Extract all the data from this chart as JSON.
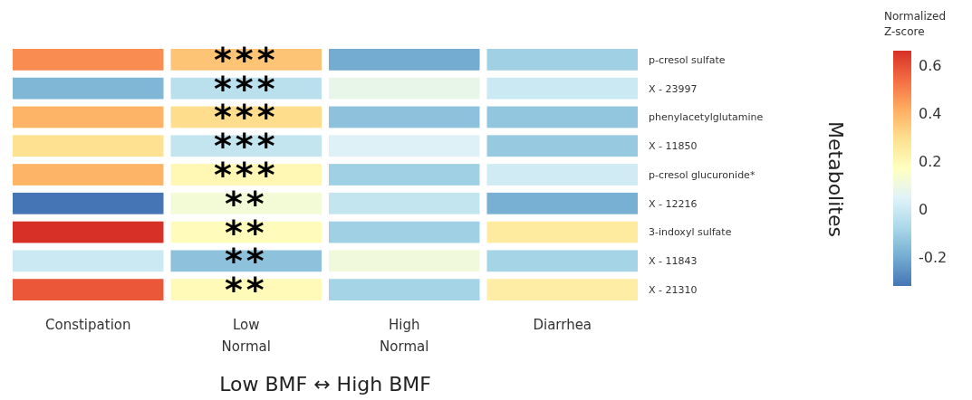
{
  "chart_data": {
    "type": "heatmap",
    "xlabel": "Low BMF ↔ High BMF",
    "ylabel": "Metabolites",
    "clabel": "Normalized Z-score",
    "categories": [
      "Constipation",
      "Low Normal",
      "High Normal",
      "Diarrhea"
    ],
    "y_categories": [
      "p-cresol sulfate",
      "X - 23997",
      "phenylacetylglutamine",
      "X - 11850",
      "p-cresol glucuronide*",
      "X - 12216",
      "3-indoxyl sulfate",
      "X - 11843",
      "X - 21310"
    ],
    "cells": [
      [
        0.48,
        0.36,
        -0.2,
        -0.1
      ],
      [
        -0.17,
        -0.04,
        0.08,
        0.0
      ],
      [
        0.4,
        0.3,
        -0.14,
        -0.13
      ],
      [
        0.29,
        -0.02,
        0.04,
        -0.12
      ],
      [
        0.4,
        0.2,
        -0.1,
        0.01
      ],
      [
        -0.32,
        0.12,
        -0.02,
        -0.19
      ],
      [
        0.66,
        0.18,
        -0.1,
        0.25
      ],
      [
        0.0,
        -0.14,
        0.11,
        -0.09
      ],
      [
        0.58,
        0.19,
        -0.09,
        0.24
      ]
    ],
    "cell_labels": [
      [
        null,
        "***",
        null,
        null
      ],
      [
        null,
        "***",
        null,
        null
      ],
      [
        null,
        "***",
        null,
        null
      ],
      [
        null,
        "***",
        null,
        null
      ],
      [
        null,
        "***",
        null,
        null
      ],
      [
        null,
        "**",
        null,
        null
      ],
      [
        null,
        "**",
        null,
        null
      ],
      [
        null,
        "**",
        null,
        null
      ],
      [
        null,
        "**",
        null,
        null
      ]
    ],
    "clim": [
      -0.32,
      0.66
    ],
    "cticks": [
      -0.2,
      0,
      0.2,
      0.4,
      0.6
    ],
    "grid": false
  }
}
